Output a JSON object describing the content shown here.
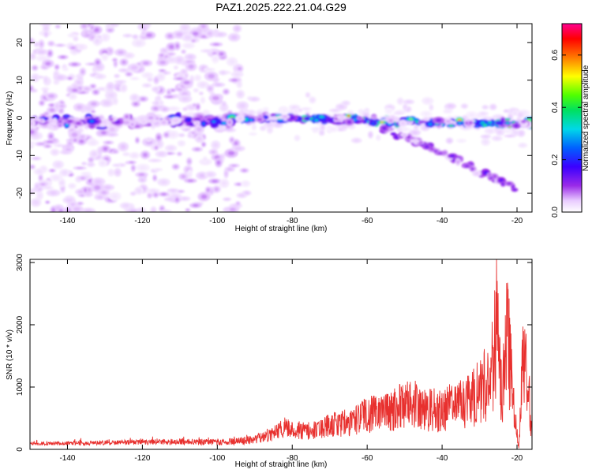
{
  "title": "PAZ1.2025.222.21.04.G29",
  "colors": {
    "snr_line": "#e8302e",
    "axis": "#000000",
    "background": "#ffffff"
  },
  "chart_data": [
    {
      "type": "heatmap",
      "xlabel": "Height of straight line (km)",
      "ylabel": "Frequency (Hz)",
      "xlim": [
        -150,
        -16
      ],
      "ylim": [
        -25,
        25
      ],
      "xticks": [
        -140,
        -120,
        -100,
        -80,
        -60,
        -40,
        -20
      ],
      "yticks": [
        -20,
        -10,
        0,
        10,
        20
      ],
      "colorbar": {
        "label": "Normalized spectral amplitude",
        "range": [
          0,
          0.72
        ],
        "ticks": [
          0.0,
          0.2,
          0.4,
          0.6
        ],
        "tick_labels": [
          "0.0",
          "0.2",
          "0.4",
          "0.6"
        ],
        "colormap": "rainbow (white-violet-blue-cyan-green-yellow-red-magenta)"
      },
      "features": {
        "main_band": {
          "freq_hz_at_x": [
            [
              -150,
              -1
            ],
            [
              -120,
              -1
            ],
            [
              -100,
              -0.5
            ],
            [
              -80,
              0
            ],
            [
              -60,
              -0.5
            ],
            [
              -40,
              -1.5
            ],
            [
              -20,
              -1.5
            ]
          ],
          "peak_amplitude": 0.65
        },
        "secondary_branch": {
          "freq_hz_at_x": [
            [
              -58,
              -2
            ],
            [
              -45,
              -7
            ],
            [
              -35,
              -12
            ],
            [
              -20,
              -19
            ]
          ]
        },
        "diffuse_noise_region_x": [
          -150,
          -92
        ]
      }
    },
    {
      "type": "line",
      "xlabel": "Height of straight line (km)",
      "ylabel": "SNR (10 * v/v)",
      "xlim": [
        -150,
        -16
      ],
      "ylim": [
        0,
        3050
      ],
      "xticks": [
        -140,
        -120,
        -100,
        -80,
        -60,
        -40,
        -20
      ],
      "yticks": [
        0,
        1000,
        2000,
        3000
      ],
      "series": [
        {
          "x": [
            -150,
            -140,
            -130,
            -120,
            -110,
            -100,
            -95,
            -90,
            -85,
            -82,
            -80,
            -75,
            -70,
            -65,
            -60,
            -55,
            -50,
            -48,
            -45,
            -40,
            -35,
            -30,
            -27,
            -25.5,
            -24,
            -22.5,
            -21,
            -19.5,
            -18.5,
            -17.5,
            -16
          ],
          "y": [
            150,
            160,
            170,
            190,
            200,
            180,
            200,
            250,
            380,
            550,
            500,
            450,
            600,
            650,
            850,
            900,
            1050,
            1200,
            1000,
            950,
            1100,
            1350,
            1800,
            3000,
            1200,
            2900,
            1000,
            50,
            1900,
            2100,
            300
          ]
        }
      ]
    }
  ]
}
